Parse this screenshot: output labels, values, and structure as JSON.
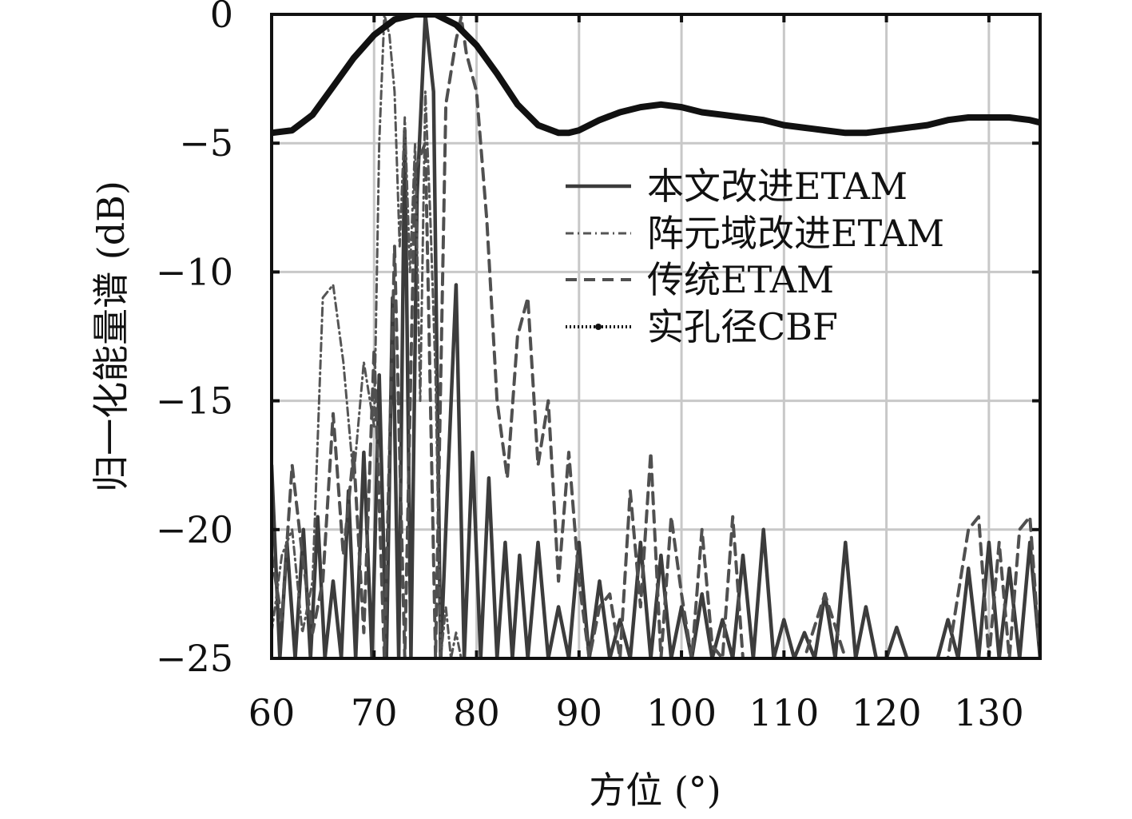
{
  "chart_data": {
    "type": "line",
    "xlabel": "方位 (°)",
    "ylabel": "归一化能量谱 (dB)",
    "xlim": [
      60,
      135
    ],
    "ylim": [
      -25,
      0
    ],
    "xticks": [
      60,
      70,
      80,
      90,
      100,
      110,
      120,
      130
    ],
    "yticks": [
      0,
      -5,
      -10,
      -15,
      -20,
      -25
    ],
    "xtick_labels": [
      "60",
      "70",
      "80",
      "90",
      "100",
      "110",
      "120",
      "130"
    ],
    "ytick_labels": [
      "0",
      "−5",
      "−10",
      "−15",
      "−20",
      "−25"
    ],
    "grid": true,
    "legend_position": "right",
    "series": [
      {
        "name": "本文改进ETAM",
        "style": "solid",
        "x": [
          60,
          60.8,
          61.5,
          62.3,
          63.1,
          63.8,
          64.5,
          65.2,
          66.0,
          66.8,
          67.5,
          68.2,
          69.0,
          69.8,
          70.5,
          71.2,
          71.8,
          72.4,
          73.0,
          73.6,
          74.2,
          75.0,
          75.8,
          76.5,
          77.2,
          78.0,
          78.8,
          79.6,
          80.4,
          81.2,
          82.0,
          82.8,
          83.5,
          84.2,
          85.0,
          86.0,
          87.0,
          88.0,
          89.0,
          90.0,
          91.0,
          92.0,
          93.0,
          94.0,
          95.0,
          96.0,
          97.0,
          98.0,
          99.0,
          100.0,
          101.0,
          102.0,
          103.0,
          104.0,
          105.0,
          106.0,
          107.0,
          108.0,
          109.0,
          110.0,
          111.0,
          112.0,
          113.0,
          114.0,
          115.0,
          116.0,
          117.0,
          118.0,
          119.0,
          120.0,
          121.0,
          122.0,
          123.0,
          124.0,
          125.0,
          126.0,
          127.0,
          128.0,
          129.0,
          130.0,
          131.0,
          132.0,
          133.0,
          134.0,
          135.0
        ],
        "values": [
          -17.5,
          -25,
          -20.5,
          -25,
          -20,
          -25,
          -19.5,
          -25,
          -22,
          -25,
          -18.5,
          -25,
          -17,
          -25,
          -14,
          -25,
          -11,
          -25,
          -4.5,
          -25,
          -7,
          0,
          -3,
          -25,
          -18,
          -10.5,
          -25,
          -17,
          -25,
          -18,
          -25,
          -20.5,
          -25,
          -21,
          -25,
          -20.5,
          -25,
          -23,
          -25,
          -20.5,
          -25,
          -22,
          -25,
          -23.5,
          -25,
          -20.5,
          -25,
          -21,
          -25,
          -23,
          -25,
          -22.5,
          -25,
          -23.5,
          -25,
          -21,
          -25,
          -20,
          -25,
          -23.5,
          -25,
          -24,
          -25,
          -22.5,
          -25,
          -20.5,
          -25,
          -23,
          -25,
          -25,
          -23.8,
          -25,
          -25,
          -25,
          -25,
          -23.5,
          -25,
          -21.5,
          -25,
          -20.5,
          -25,
          -21.5,
          -25,
          -20.5,
          -25
        ]
      },
      {
        "name": "阵元域改进ETAM",
        "style": "dashdot",
        "x": [
          60,
          61,
          62,
          63,
          64,
          65,
          66,
          67,
          68,
          69,
          70,
          70.5,
          71,
          71.5,
          72,
          72.5,
          73,
          73.5,
          74,
          74.5,
          75,
          75.5,
          76,
          76.5,
          77,
          77.5,
          78,
          78.5,
          79,
          80,
          81,
          82,
          83,
          84,
          85,
          86,
          87,
          88,
          89,
          90,
          92,
          94,
          96,
          98,
          100,
          102,
          104,
          106,
          108,
          110,
          112,
          114,
          116,
          118,
          120,
          122,
          124,
          126,
          128,
          130,
          132,
          134,
          135
        ],
        "values": [
          -24,
          -21,
          -20,
          -24,
          -22,
          -11,
          -10.5,
          -13.5,
          -18,
          -13.5,
          -16,
          -5,
          0,
          -0.8,
          -3,
          -9,
          -4,
          -10,
          -5,
          -15,
          -3,
          -8,
          -14,
          -25,
          -23,
          -25,
          -24,
          -25,
          -25,
          -25,
          -25,
          -25,
          -25,
          -25,
          -25,
          -25,
          -25,
          -25,
          -25,
          -25,
          -25,
          -25,
          -25,
          -25,
          -25,
          -25,
          -25,
          -25,
          -25,
          -25,
          -25,
          -25,
          -25,
          -25,
          -25,
          -25,
          -25,
          -25,
          -25,
          -25,
          -25,
          -25,
          -25
        ]
      },
      {
        "name": "传统ETAM",
        "style": "dashed",
        "x": [
          60,
          61,
          62,
          63,
          64,
          65,
          66,
          67,
          68,
          69,
          70,
          71,
          72,
          73,
          74,
          75,
          76,
          77,
          78,
          78.5,
          79,
          80,
          81,
          82,
          83,
          84,
          85,
          86,
          87,
          88,
          89,
          90,
          91,
          92,
          93,
          94,
          95,
          96,
          97,
          98,
          99,
          100,
          101,
          102,
          103,
          104,
          105,
          106,
          107,
          108,
          109,
          110,
          112,
          114,
          116,
          118,
          120,
          122,
          124,
          126,
          128,
          129,
          130,
          131,
          132,
          133,
          134,
          135
        ],
        "values": [
          -21,
          -23.5,
          -17.5,
          -21,
          -24,
          -22,
          -15.5,
          -21,
          -17,
          -24,
          -13,
          -25,
          -9,
          -25,
          -6,
          -5,
          -25,
          -3.5,
          -1,
          -0.1,
          -1.5,
          -3,
          -8,
          -15,
          -18,
          -12.5,
          -11,
          -17.5,
          -15,
          -22,
          -17,
          -22,
          -25,
          -23,
          -22.5,
          -25,
          -18.5,
          -23,
          -17,
          -25,
          -19.5,
          -22.5,
          -25,
          -20,
          -24.5,
          -25,
          -19.5,
          -25,
          -25,
          -25,
          -25,
          -25,
          -25,
          -22.5,
          -25,
          -25,
          -25,
          -25,
          -25,
          -25,
          -20,
          -19.5,
          -25,
          -20.5,
          -25,
          -20,
          -19.5,
          -25
        ]
      },
      {
        "name": "实孔径CBF",
        "style": "thick-dotted",
        "x": [
          60,
          62,
          64,
          66,
          68,
          70,
          72,
          74,
          75,
          76,
          78,
          80,
          82,
          84,
          86,
          88,
          89,
          90,
          92,
          94,
          96,
          98,
          100,
          102,
          104,
          106,
          108,
          110,
          112,
          114,
          116,
          118,
          120,
          122,
          124,
          126,
          128,
          130,
          132,
          134,
          135
        ],
        "values": [
          -4.6,
          -4.5,
          -3.9,
          -2.8,
          -1.7,
          -0.8,
          -0.2,
          0.0,
          0.0,
          0.0,
          -0.4,
          -1.2,
          -2.3,
          -3.5,
          -4.3,
          -4.6,
          -4.6,
          -4.5,
          -4.1,
          -3.8,
          -3.6,
          -3.5,
          -3.6,
          -3.8,
          -3.9,
          -4.0,
          -4.1,
          -4.3,
          -4.4,
          -4.5,
          -4.6,
          -4.6,
          -4.5,
          -4.4,
          -4.3,
          -4.1,
          -4.0,
          -4.0,
          -4.0,
          -4.1,
          -4.2
        ]
      }
    ]
  }
}
